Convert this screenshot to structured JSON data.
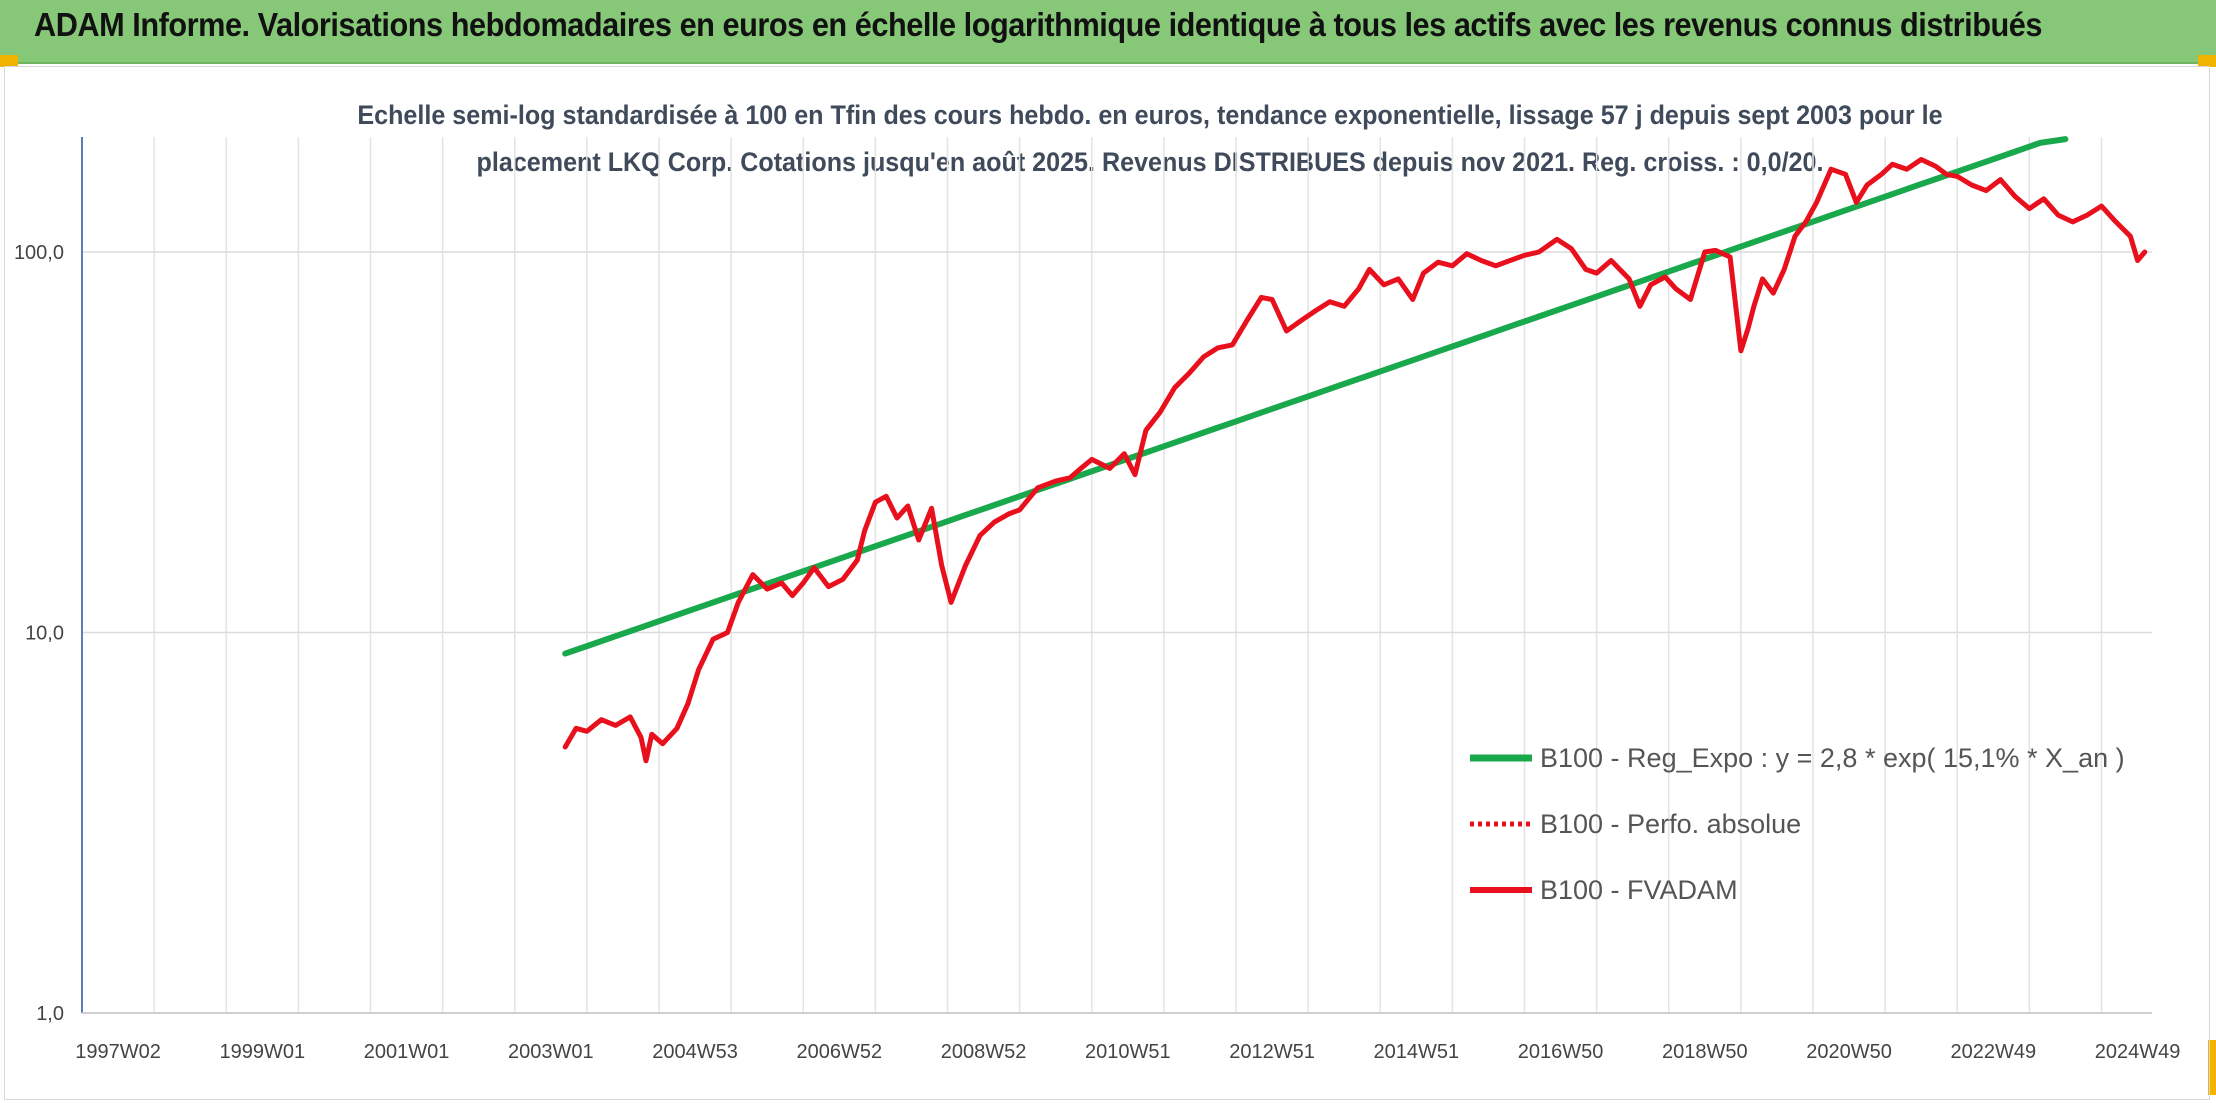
{
  "header": {
    "title": "ADAM Informe. Valorisations hebdomadaires en euros en échelle logarithmique identique à tous les actifs avec les revenus connus distribués"
  },
  "chart_data": {
    "type": "line",
    "subtitle_line1": "Echelle semi-log standardisée à 100 en Tfin des cours hebdo. en euros, tendance exponentielle, lissage 57 j depuis sept 2003 pour le",
    "subtitle_line2": "placement LKQ Corp. Cotations jusqu'en août 2025. Revenus DISTRIBUES depuis nov 2021. Reg. croiss. : 0,0/20.",
    "y_scale": "log",
    "ylim": [
      1,
      200
    ],
    "y_ticks": [
      1,
      10,
      100
    ],
    "y_tick_labels": [
      "1,0",
      "10,0",
      "100,0"
    ],
    "xlim": [
      1997.0,
      2025.7
    ],
    "x_tick_labels": [
      "1997W02",
      "1999W01",
      "2001W01",
      "2003W01",
      "2004W53",
      "2006W52",
      "2008W52",
      "2010W51",
      "2012W51",
      "2014W51",
      "2016W50",
      "2018W50",
      "2020W50",
      "2022W49",
      "2024W49"
    ],
    "grid": "vertical lines every year, horizontal at 1, 10, 100",
    "legend_position": "bottom-right",
    "colors": {
      "regression": "#1aa84c",
      "perf_absolue": "#e8101c",
      "fvadam": "#e8101c"
    },
    "series": [
      {
        "name": "B100 - Reg_Expo : y = 2,8 * exp( 15,1% *  X_an )",
        "style": "solid-green",
        "x": [
          2003.7,
          2024.5
        ],
        "y": [
          8.8,
          204
        ]
      },
      {
        "name": "B100 - Perfo. absolue",
        "style": "dotted-red",
        "x": [],
        "y": []
      },
      {
        "name": "B100 - FVADAM",
        "style": "solid-red",
        "x": [
          2003.7,
          2003.85,
          2004.0,
          2004.2,
          2004.4,
          2004.6,
          2004.75,
          2004.82,
          2004.9,
          2005.05,
          2005.25,
          2005.4,
          2005.55,
          2005.75,
          2005.95,
          2006.1,
          2006.3,
          2006.5,
          2006.7,
          2006.85,
          2007.0,
          2007.15,
          2007.35,
          2007.55,
          2007.75,
          2007.85,
          2008.0,
          2008.15,
          2008.3,
          2008.45,
          2008.6,
          2008.78,
          2008.92,
          2009.05,
          2009.25,
          2009.45,
          2009.65,
          2009.85,
          2010.0,
          2010.25,
          2010.5,
          2010.7,
          2010.85,
          2011.0,
          2011.25,
          2011.45,
          2011.6,
          2011.75,
          2011.95,
          2012.15,
          2012.35,
          2012.55,
          2012.75,
          2012.95,
          2013.15,
          2013.35,
          2013.5,
          2013.7,
          2013.9,
          2014.1,
          2014.3,
          2014.5,
          2014.7,
          2014.85,
          2015.05,
          2015.25,
          2015.45,
          2015.6,
          2015.8,
          2016.0,
          2016.2,
          2016.4,
          2016.6,
          2016.8,
          2017.0,
          2017.2,
          2017.45,
          2017.65,
          2017.85,
          2018.0,
          2018.2,
          2018.45,
          2018.6,
          2018.75,
          2018.95,
          2019.1,
          2019.3,
          2019.5,
          2019.65,
          2019.85,
          2020.0,
          2020.1,
          2020.18,
          2020.3,
          2020.45,
          2020.6,
          2020.75,
          2020.9,
          2021.05,
          2021.25,
          2021.45,
          2021.6,
          2021.75,
          2021.95,
          2022.1,
          2022.3,
          2022.5,
          2022.7,
          2022.85,
          2023.0,
          2023.2,
          2023.4,
          2023.6,
          2023.8,
          2024.0,
          2024.2,
          2024.4,
          2024.6,
          2024.8,
          2025.0,
          2025.2,
          2025.4,
          2025.5,
          2025.6
        ],
        "y": [
          5.0,
          5.6,
          5.5,
          5.9,
          5.7,
          6.0,
          5.3,
          4.6,
          5.4,
          5.1,
          5.6,
          6.5,
          8.0,
          9.6,
          10.0,
          12.0,
          14.2,
          13.0,
          13.5,
          12.5,
          13.5,
          14.8,
          13.2,
          13.8,
          15.5,
          18.5,
          22.0,
          22.8,
          20.0,
          21.5,
          17.5,
          21.2,
          15.0,
          12.0,
          15.0,
          18.0,
          19.5,
          20.5,
          21.0,
          24.0,
          25.0,
          25.5,
          27.0,
          28.5,
          27.0,
          29.5,
          26.0,
          34.0,
          38.0,
          44.0,
          48.0,
          53.0,
          56.0,
          57.0,
          66.0,
          76.0,
          75.0,
          62.0,
          66.0,
          70.0,
          74.0,
          72.0,
          80.0,
          90.0,
          82.0,
          85.0,
          75.0,
          88.0,
          94.0,
          92.0,
          99.0,
          95.0,
          92.0,
          95.0,
          98.0,
          100.0,
          108.0,
          102.0,
          90.0,
          88.0,
          95.0,
          85.0,
          72.0,
          82.0,
          86.0,
          80.0,
          75.0,
          100.0,
          101.0,
          97.0,
          55.0,
          63.0,
          72.0,
          85.0,
          78.0,
          90.0,
          110.0,
          120.0,
          135.0,
          165.0,
          160.0,
          135.0,
          150.0,
          160.0,
          170.0,
          165.0,
          175.0,
          168.0,
          160.0,
          158.0,
          150.0,
          145.0,
          155.0,
          140.0,
          130.0,
          138.0,
          125.0,
          120.0,
          125.0,
          132.0,
          120.0,
          110.0,
          95.0,
          100.0
        ]
      }
    ]
  }
}
